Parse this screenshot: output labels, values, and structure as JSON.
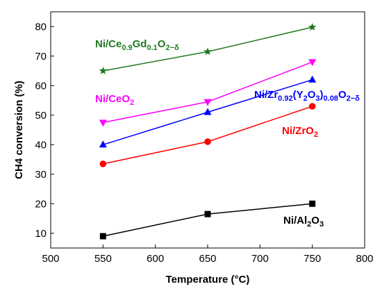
{
  "chart_data": {
    "type": "line",
    "x": [
      550,
      650,
      750
    ],
    "xlabel": "Temperature (°C)",
    "ylabel": "CH4 conversion (%)",
    "xlim": [
      500,
      800
    ],
    "ylim": [
      5,
      85
    ],
    "xticks": [
      500,
      550,
      600,
      650,
      700,
      750,
      800
    ],
    "yticks": [
      10,
      20,
      30,
      40,
      50,
      60,
      70,
      80
    ],
    "grid": false,
    "series": [
      {
        "name": "Ni/Ce0.9Gd0.1O2−δ",
        "color": "#1f7a1f",
        "marker": "star",
        "values": [
          65,
          71.5,
          79.8
        ]
      },
      {
        "name": "Ni/CeO2",
        "color": "#ff00ff",
        "marker": "triangle-down",
        "values": [
          47.5,
          54.5,
          68
        ]
      },
      {
        "name": "Ni/Zr0.92(Y2O3)0.08O2−δ",
        "color": "#0000ff",
        "marker": "triangle-up",
        "values": [
          40,
          51,
          62
        ]
      },
      {
        "name": "Ni/ZrO2",
        "color": "#ff0000",
        "marker": "circle",
        "values": [
          33.5,
          41,
          53
        ]
      },
      {
        "name": "Ni/Al2O3",
        "color": "#000000",
        "marker": "square",
        "values": [
          9,
          16.5,
          20
        ]
      }
    ]
  }
}
